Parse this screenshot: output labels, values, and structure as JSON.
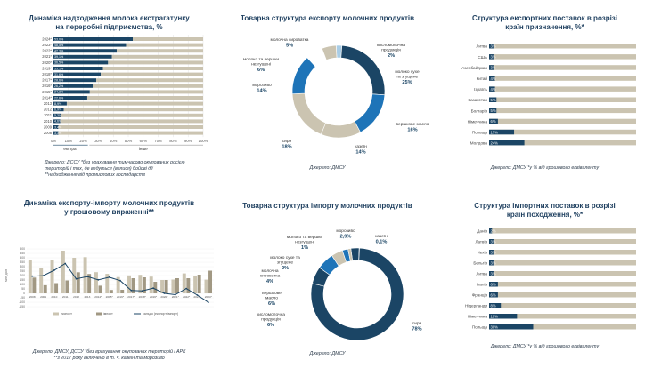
{
  "colors": {
    "navy": "#1b4565",
    "blue": "#1e74b8",
    "beige": "#cbc4b1",
    "light_blue": "#a9cde6",
    "gray_line": "#cfcfcf",
    "title": "#1e3f5f"
  },
  "panels": {
    "processing": {
      "title_1": "Динаміка надходження молока екстрагатунку",
      "title_2": "на переробні підприємства, %",
      "source_1": "Джерело: ДССУ    *без урахування тимчасово окупованих росією",
      "source_2": "територій і тих, де ведуться (велися) бойові дії",
      "source_3": "**надходження від промислових господарств",
      "legend_extra": "екстра",
      "legend_other": "інше"
    },
    "export_structure": {
      "title": "Товарна структура експорту молочних продуктів",
      "source": "Джерело: ДМСУ"
    },
    "export_countries": {
      "title_1": "Структура експортних поставок в розрізі",
      "title_2": "країн призначення, %*",
      "source": "Джерело: ДМСУ    *у % від грошового еквіваленту"
    },
    "dynamics": {
      "title_1": "Динаміка експорту-імпорту молочних продуктів",
      "title_2": "у грошовому вираженні**",
      "source_1": "Джерело: ДМСУ, ДССУ    *без врахування окупованих територій і АРК",
      "source_2": "**з 2017 року включено в т. ч. казеїн та морозиво"
    },
    "import_structure": {
      "title": "Товарна структура імпорту молочних продуктів",
      "source": "Джерело: ДМСУ"
    },
    "import_countries": {
      "title_1": "Структура імпортних поставок в розрізі",
      "title_2": "країн походження, %*",
      "source": "Джерело: ДМСУ    *у % від грошового еквіваленту"
    }
  },
  "chart_data": [
    {
      "id": "processing",
      "type": "bar",
      "orientation": "horizontal",
      "stacked": true,
      "categories": [
        "2024*",
        "2023*",
        "2022*",
        "2021*",
        "2020*",
        "2019*",
        "2018*",
        "2017*",
        "2016*",
        "2015*",
        "2014*",
        "2013",
        "2012",
        "2011",
        "2010",
        "2009",
        "2008"
      ],
      "value_labels": [
        "53,0%",
        "48,5%",
        "42,3%",
        "39,1%",
        "36,5%",
        "33,1%",
        "31,6%",
        "28,6%",
        "26,2%",
        "24,3%",
        "22,6%",
        "8,9%",
        "6,9%",
        "5,3%",
        "4,6%",
        "3,4%",
        "3,3%"
      ],
      "series": [
        {
          "name": "екстра",
          "values": [
            53.0,
            48.5,
            42.3,
            39.1,
            36.5,
            33.1,
            31.6,
            28.6,
            26.2,
            24.3,
            22.6,
            8.9,
            6.9,
            5.3,
            4.6,
            3.4,
            3.3
          ]
        },
        {
          "name": "інше",
          "values": [
            47.0,
            51.5,
            57.7,
            60.9,
            63.5,
            66.9,
            68.4,
            71.4,
            73.8,
            75.7,
            77.4,
            91.1,
            93.1,
            94.7,
            95.4,
            96.6,
            96.7
          ]
        }
      ],
      "xlim": [
        0,
        100
      ],
      "xticks": [
        "0%",
        "10%",
        "20%",
        "30%",
        "40%",
        "50%",
        "60%",
        "70%",
        "80%",
        "90%",
        "100%"
      ]
    },
    {
      "id": "export_structure",
      "type": "pie",
      "donut": true,
      "labels": [
        "кисломолочна продукція",
        "молоко сухе та згущене",
        "вершкове масло",
        "казеїн",
        "сири",
        "морозиво",
        "молоко та вершки незгущені",
        "молочна сироватка"
      ],
      "label_names": [
        [
          "кисломолочна",
          "продукція"
        ],
        [
          "молоко сухе",
          "та згущене"
        ],
        [
          "вершкове масло"
        ],
        [
          "казеїн"
        ],
        [
          "сири"
        ],
        [
          "морозиво"
        ],
        [
          "молоко та вершки",
          "незгущені"
        ],
        [
          "молочна сироватка"
        ]
      ],
      "label_values": [
        "2%",
        "25%",
        "16%",
        "14%",
        "18%",
        "14%",
        "6%",
        "5%"
      ],
      "values": [
        2,
        25,
        16,
        14,
        18,
        14,
        6,
        5
      ],
      "colors": [
        "#a9cde6",
        "#1b4565",
        "#1e74b8",
        "#cbc4b1",
        "#cbc4b1",
        "#1e74b8",
        "#ffffff",
        "#cbc4b1"
      ]
    },
    {
      "id": "export_countries",
      "type": "bar",
      "orientation": "horizontal",
      "stacked": true,
      "categories": [
        "Литва",
        "США",
        "Азербайджан",
        "Китай",
        "Ізраїль",
        "Казахстан",
        "Болгарія",
        "Німеччина",
        "Польща",
        "Молдова"
      ],
      "value_labels": [
        "3%",
        "3%",
        "3%",
        "4%",
        "4%",
        "5%",
        "5%",
        "6%",
        "17%",
        "24%"
      ],
      "values": [
        3,
        3,
        3,
        4,
        4,
        5,
        5,
        6,
        17,
        24
      ],
      "xlim": [
        0,
        100
      ]
    },
    {
      "id": "dynamics",
      "type": "bar",
      "categories": [
        "2008",
        "2009",
        "2010",
        "2011",
        "2012",
        "2013",
        "2014*",
        "2015*",
        "2016*",
        "2017*",
        "2018*",
        "2019*",
        "2020*",
        "2021*",
        "2022*",
        "2023*",
        "2024*"
      ],
      "series": [
        {
          "name": "експорт",
          "type": "bar",
          "values": [
            370,
            290,
            375,
            480,
            400,
            407,
            238,
            219,
            183,
            202,
            208,
            188,
            150,
            155,
            224,
            190,
            154
          ]
        },
        {
          "name": "імпорт",
          "type": "bar",
          "values": [
            177,
            91,
            115,
            145,
            237,
            218,
            86,
            38,
            40,
            170,
            180,
            130,
            150,
            170,
            170,
            210,
            255
          ]
        },
        {
          "name": "сальдо",
          "type": "line",
          "values": [
            193,
            199,
            260,
            335,
            163,
            189,
            152,
            181,
            143,
            32,
            28,
            58,
            0,
            -15,
            54,
            -20,
            -101
          ]
        }
      ],
      "bar_labels": [
        "",
        "",
        "",
        "",
        "",
        "",
        "",
        "",
        "",
        "",
        "",
        "",
        "",
        "",
        "",
        "",
        ""
      ],
      "ylim": [
        -150,
        550
      ],
      "yticks": [
        "-150",
        "-100",
        "-50",
        "0",
        "50",
        "100",
        "150",
        "200",
        "250",
        "300",
        "350",
        "400",
        "450",
        "500"
      ],
      "ylabel": "млн дол",
      "legend": [
        "експорт",
        "імпорт",
        "сальдо (експорт-імпорт)"
      ]
    },
    {
      "id": "import_structure",
      "type": "pie",
      "donut": true,
      "labels": [
        "морозиво",
        "казеїн",
        "сири",
        "кисломолочна продукція",
        "вершкове масло",
        "молочна сироватка",
        "молоко сухе та згущене",
        "молоко та вершки незгущені"
      ],
      "label_names": [
        [
          "морозиво"
        ],
        [
          "казеїн"
        ],
        [
          "сири"
        ],
        [
          "кисломолочна",
          "продукція"
        ],
        [
          "вершкове",
          "масло"
        ],
        [
          "молочна",
          "сироватка"
        ],
        [
          "молоко сухе та",
          "згущене"
        ],
        [
          "молоко та вершки",
          "незгущені"
        ]
      ],
      "label_values": [
        "2,9%",
        "0,1%",
        "78%",
        "6%",
        "6%",
        "4%",
        "2%",
        "1%"
      ],
      "values": [
        2.9,
        0.1,
        78,
        6,
        6,
        4,
        2,
        1
      ],
      "colors": [
        "#1b4565",
        "#cbc4b1",
        "#1b4565",
        "#1b4565",
        "#1e74b8",
        "#cbc4b1",
        "#1e74b8",
        "#cbc4b1"
      ]
    },
    {
      "id": "import_countries",
      "type": "bar",
      "orientation": "horizontal",
      "stacked": true,
      "categories": [
        "Данія",
        "Латвія",
        "Чехія",
        "Бельгія",
        "Литва",
        "Італія",
        "Франція",
        "Нідерланди",
        "Німеччина",
        "Польща"
      ],
      "value_labels": [
        "2%",
        "3%",
        "3%",
        "3%",
        "3%",
        "6%",
        "6%",
        "8%",
        "19%",
        "30%"
      ],
      "values": [
        2,
        3,
        3,
        3,
        3,
        6,
        6,
        8,
        19,
        30
      ],
      "xlim": [
        0,
        100
      ]
    }
  ]
}
